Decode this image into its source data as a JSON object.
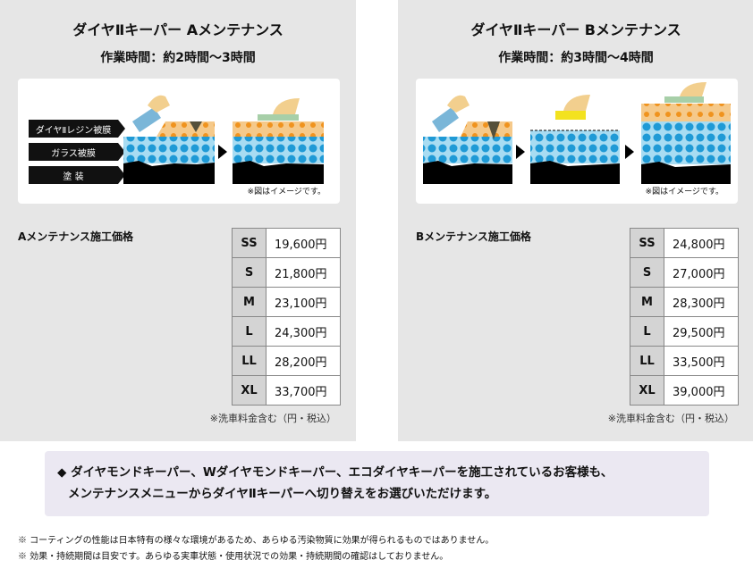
{
  "panels": [
    {
      "title": "ダイヤⅡキーパー Aメンテナンス",
      "subtitle": "作業時間：約2時間～3時間",
      "layers": [
        "ダイヤⅡレジン被膜",
        "ガラス被膜",
        "塗 装"
      ],
      "image_note": "※図はイメージです。",
      "price_title": "Aメンテナンス施工価格",
      "prices": [
        {
          "size": "SS",
          "price": "19,600円"
        },
        {
          "size": "S",
          "price": "21,800円"
        },
        {
          "size": "M",
          "price": "23,100円"
        },
        {
          "size": "L",
          "price": "24,300円"
        },
        {
          "size": "LL",
          "price": "28,200円"
        },
        {
          "size": "XL",
          "price": "33,700円"
        }
      ],
      "tax_note": "※洗車料金含む（円・税込）"
    },
    {
      "title": "ダイヤⅡキーパー Bメンテナンス",
      "subtitle": "作業時間：約3時間～4時間",
      "image_note": "※図はイメージです。",
      "price_title": "Bメンテナンス施工価格",
      "prices": [
        {
          "size": "SS",
          "price": "24,800円"
        },
        {
          "size": "S",
          "price": "27,000円"
        },
        {
          "size": "M",
          "price": "28,300円"
        },
        {
          "size": "L",
          "price": "29,500円"
        },
        {
          "size": "LL",
          "price": "33,500円"
        },
        {
          "size": "XL",
          "price": "39,000円"
        }
      ],
      "tax_note": "※洗車料金含む（円・税込）"
    }
  ],
  "info": {
    "line1": "◆ ダイヤモンドキーパー、Wダイヤモンドキーパー、エコダイヤキーパーを施工されているお客様も、",
    "line2": "メンテナンスメニューからダイヤⅡキーパーへ切り替えをお選びいただけます。"
  },
  "footnotes": [
    "※ コーティングの性能は日本特有の様々な環境があるため、あらゆる汚染物質に効果が得られるものではありません。",
    "※ 効果・持続期間は目安です。あらゆる実車状態・使用状況での効果・持続期間の確認はしておりません。"
  ],
  "colors": {
    "panel": "#e6e6e6",
    "glass": "#a8dcf2",
    "glass_dot": "#1f9ad6",
    "resin": "#f5c98a",
    "resin_dot": "#f0931e",
    "info_bg": "#ebe8f2"
  }
}
